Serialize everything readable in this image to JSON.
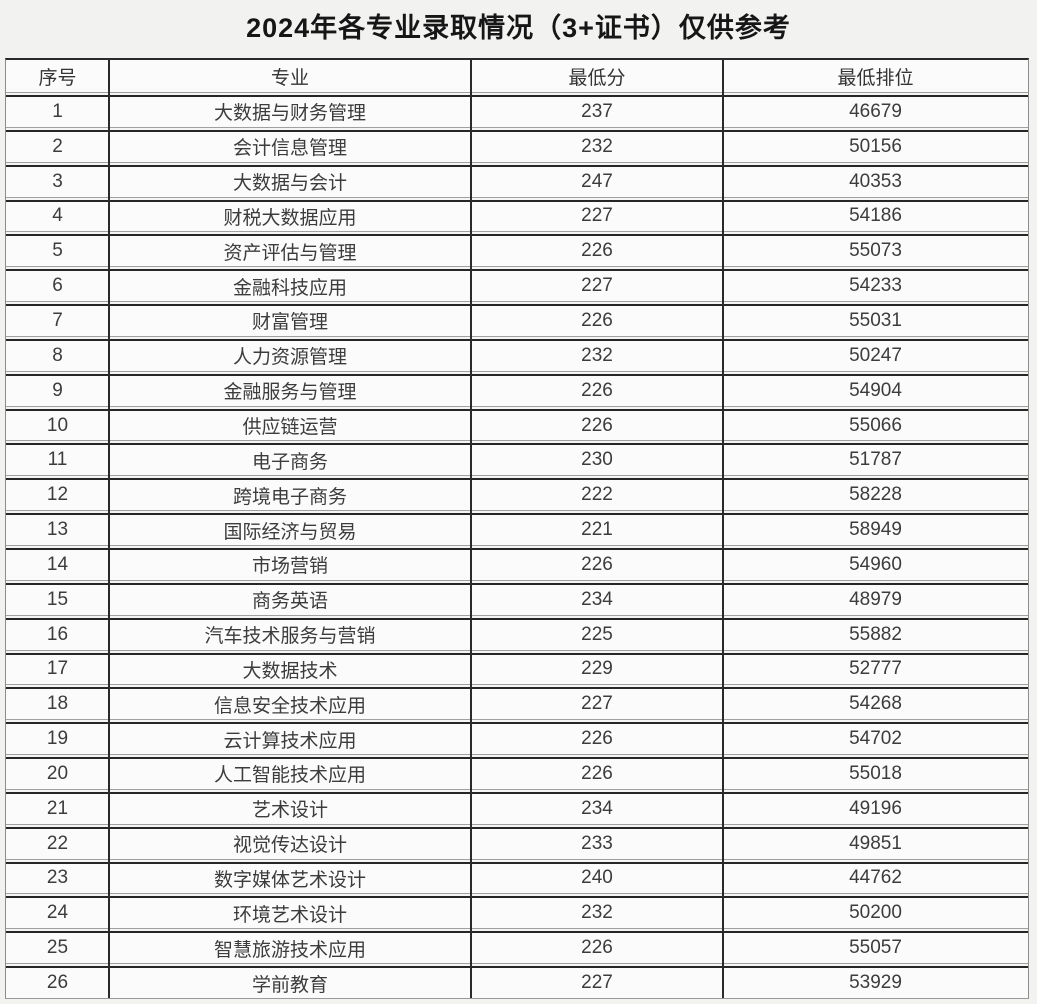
{
  "title": "2024年各专业录取情况（3+证书）仅供参考",
  "table": {
    "columns": [
      "序号",
      "专业",
      "最低分",
      "最低排位"
    ],
    "rows": [
      {
        "no": "1",
        "major": "大数据与财务管理",
        "score": "237",
        "rank": "46679"
      },
      {
        "no": "2",
        "major": "会计信息管理",
        "score": "232",
        "rank": "50156"
      },
      {
        "no": "3",
        "major": "大数据与会计",
        "score": "247",
        "rank": "40353"
      },
      {
        "no": "4",
        "major": "财税大数据应用",
        "score": "227",
        "rank": "54186"
      },
      {
        "no": "5",
        "major": "资产评估与管理",
        "score": "226",
        "rank": "55073"
      },
      {
        "no": "6",
        "major": "金融科技应用",
        "score": "227",
        "rank": "54233"
      },
      {
        "no": "7",
        "major": "财富管理",
        "score": "226",
        "rank": "55031"
      },
      {
        "no": "8",
        "major": "人力资源管理",
        "score": "232",
        "rank": "50247"
      },
      {
        "no": "9",
        "major": "金融服务与管理",
        "score": "226",
        "rank": "54904"
      },
      {
        "no": "10",
        "major": "供应链运营",
        "score": "226",
        "rank": "55066"
      },
      {
        "no": "11",
        "major": "电子商务",
        "score": "230",
        "rank": "51787"
      },
      {
        "no": "12",
        "major": "跨境电子商务",
        "score": "222",
        "rank": "58228"
      },
      {
        "no": "13",
        "major": "国际经济与贸易",
        "score": "221",
        "rank": "58949"
      },
      {
        "no": "14",
        "major": "市场营销",
        "score": "226",
        "rank": "54960"
      },
      {
        "no": "15",
        "major": "商务英语",
        "score": "234",
        "rank": "48979"
      },
      {
        "no": "16",
        "major": "汽车技术服务与营销",
        "score": "225",
        "rank": "55882"
      },
      {
        "no": "17",
        "major": "大数据技术",
        "score": "229",
        "rank": "52777"
      },
      {
        "no": "18",
        "major": "信息安全技术应用",
        "score": "227",
        "rank": "54268"
      },
      {
        "no": "19",
        "major": "云计算技术应用",
        "score": "226",
        "rank": "54702"
      },
      {
        "no": "20",
        "major": "人工智能技术应用",
        "score": "226",
        "rank": "55018"
      },
      {
        "no": "21",
        "major": "艺术设计",
        "score": "234",
        "rank": "49196"
      },
      {
        "no": "22",
        "major": "视觉传达设计",
        "score": "233",
        "rank": "49851"
      },
      {
        "no": "23",
        "major": "数字媒体艺术设计",
        "score": "240",
        "rank": "44762"
      },
      {
        "no": "24",
        "major": "环境艺术设计",
        "score": "232",
        "rank": "50200"
      },
      {
        "no": "25",
        "major": "智慧旅游技术应用",
        "score": "226",
        "rank": "55057"
      },
      {
        "no": "26",
        "major": "学前教育",
        "score": "227",
        "rank": "53929"
      }
    ]
  },
  "colors": {
    "grid_heavy": "#2a2a2a",
    "grid_light": "#a0a0a0",
    "page_background": "#f2f2f1",
    "row_background": "#fbfbfb",
    "text": "#3c3c3c"
  }
}
